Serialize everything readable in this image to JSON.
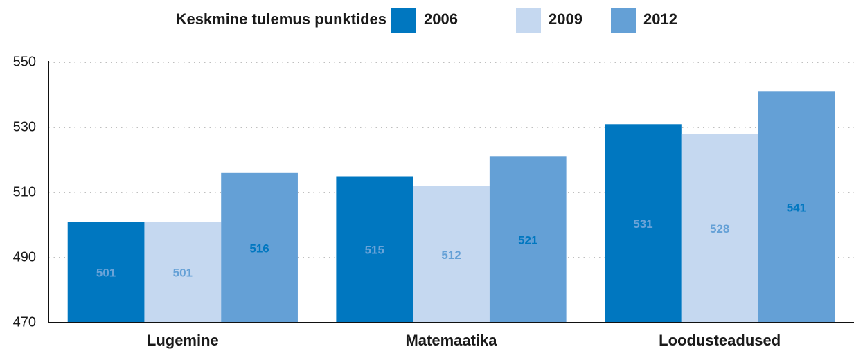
{
  "chart_data": {
    "type": "bar",
    "legend_title": "Keskmine tulemus punktides",
    "categories": [
      "Lugemine",
      "Matemaatika",
      "Loodusteadused"
    ],
    "series": [
      {
        "name": "2006",
        "color": "#0077c0",
        "label_color": "#6aa3d8",
        "values": [
          501,
          515,
          531
        ]
      },
      {
        "name": "2009",
        "color": "#c5d8f0",
        "label_color": "#64a0d6",
        "values": [
          501,
          512,
          528
        ]
      },
      {
        "name": "2012",
        "color": "#64a0d6",
        "label_color": "#0077c0",
        "values": [
          516,
          521,
          541
        ]
      }
    ],
    "ylim": [
      470,
      550
    ],
    "yticks": [
      470,
      490,
      510,
      530,
      550
    ],
    "grid": true,
    "legend": "top"
  }
}
